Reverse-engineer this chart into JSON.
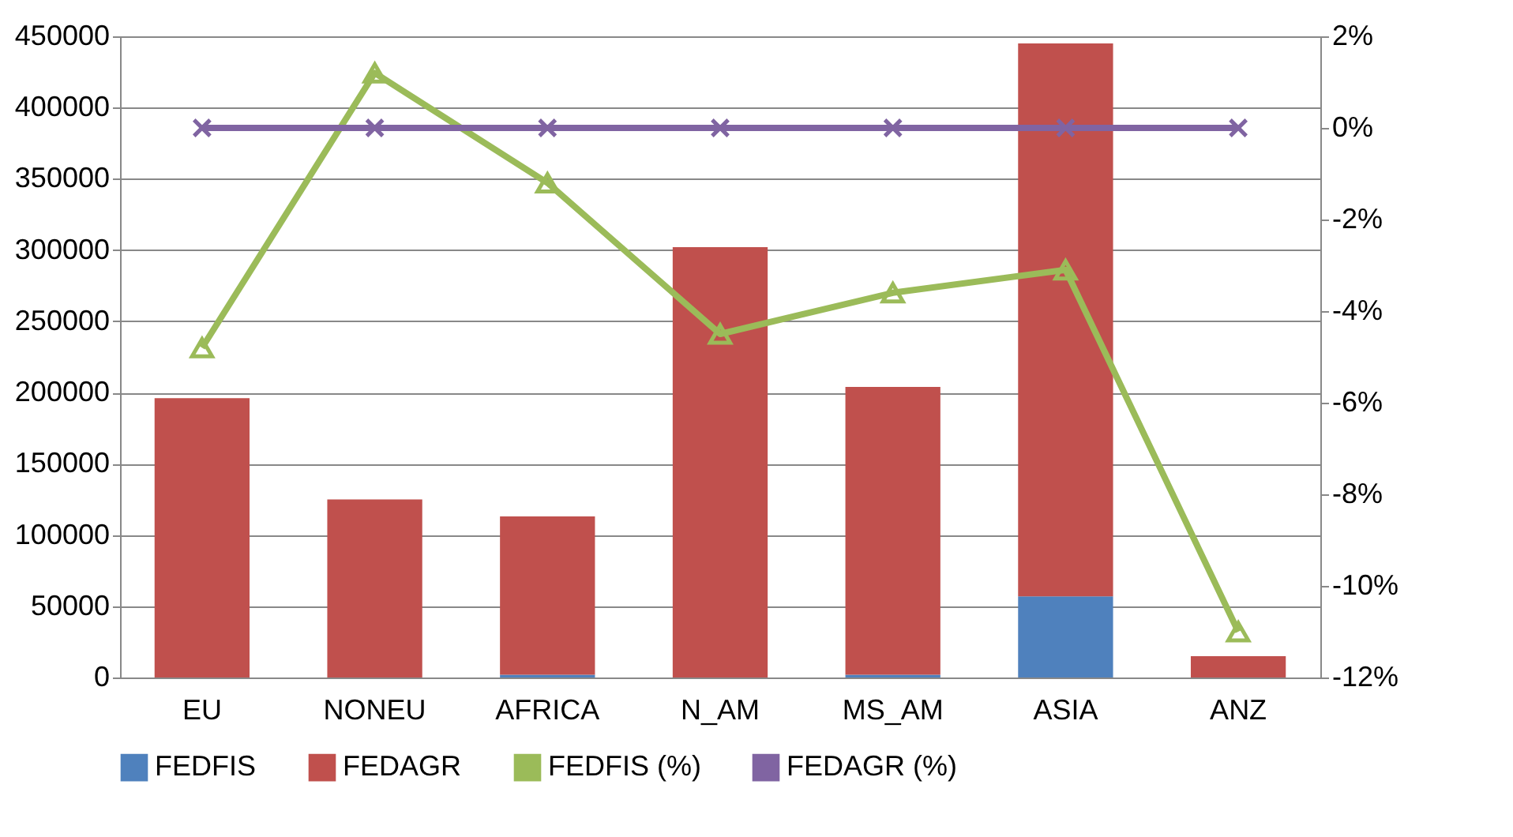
{
  "chart_data": {
    "type": "bar",
    "stacked": true,
    "categories": [
      "EU",
      "NONEU",
      "AFRICA",
      "N_AM",
      "MS_AM",
      "ASIA",
      "ANZ"
    ],
    "series": [
      {
        "name": "FEDFIS",
        "color": "#4f81bd",
        "values": [
          null,
          null,
          2000,
          null,
          2000,
          57000,
          null
        ]
      },
      {
        "name": "FEDAGR",
        "color": "#c0504d",
        "values": [
          196000,
          125000,
          111000,
          302000,
          202000,
          388000,
          15000
        ]
      },
      {
        "name": "FEDFIS (%)",
        "type": "line",
        "axis": "y2",
        "marker": "triangle",
        "color": "#9bbb59",
        "values": [
          -4.8,
          1.2,
          -1.2,
          -4.5,
          -3.6,
          -3.1,
          -11.0
        ]
      },
      {
        "name": "FEDAGR (%)",
        "type": "line",
        "axis": "y2",
        "marker": "cross",
        "color": "#8064a2",
        "values": [
          0,
          0,
          0,
          0,
          0,
          0,
          0
        ]
      }
    ],
    "ylim": [
      0,
      450000
    ],
    "yticks": [
      0,
      50000,
      100000,
      150000,
      200000,
      250000,
      300000,
      350000,
      400000,
      450000
    ],
    "y2lim": [
      -12,
      2
    ],
    "y2ticks": [
      {
        "value": -12,
        "label": "-12%"
      },
      {
        "value": -10,
        "label": "-10%"
      },
      {
        "value": -8,
        "label": "-8%"
      },
      {
        "value": -6,
        "label": "-6%"
      },
      {
        "value": -4,
        "label": "-4%"
      },
      {
        "value": -2,
        "label": "-2%"
      },
      {
        "value": 0,
        "label": "0%"
      },
      {
        "value": 2,
        "label": "2%"
      }
    ],
    "grid": "y",
    "legend": "bottom"
  }
}
